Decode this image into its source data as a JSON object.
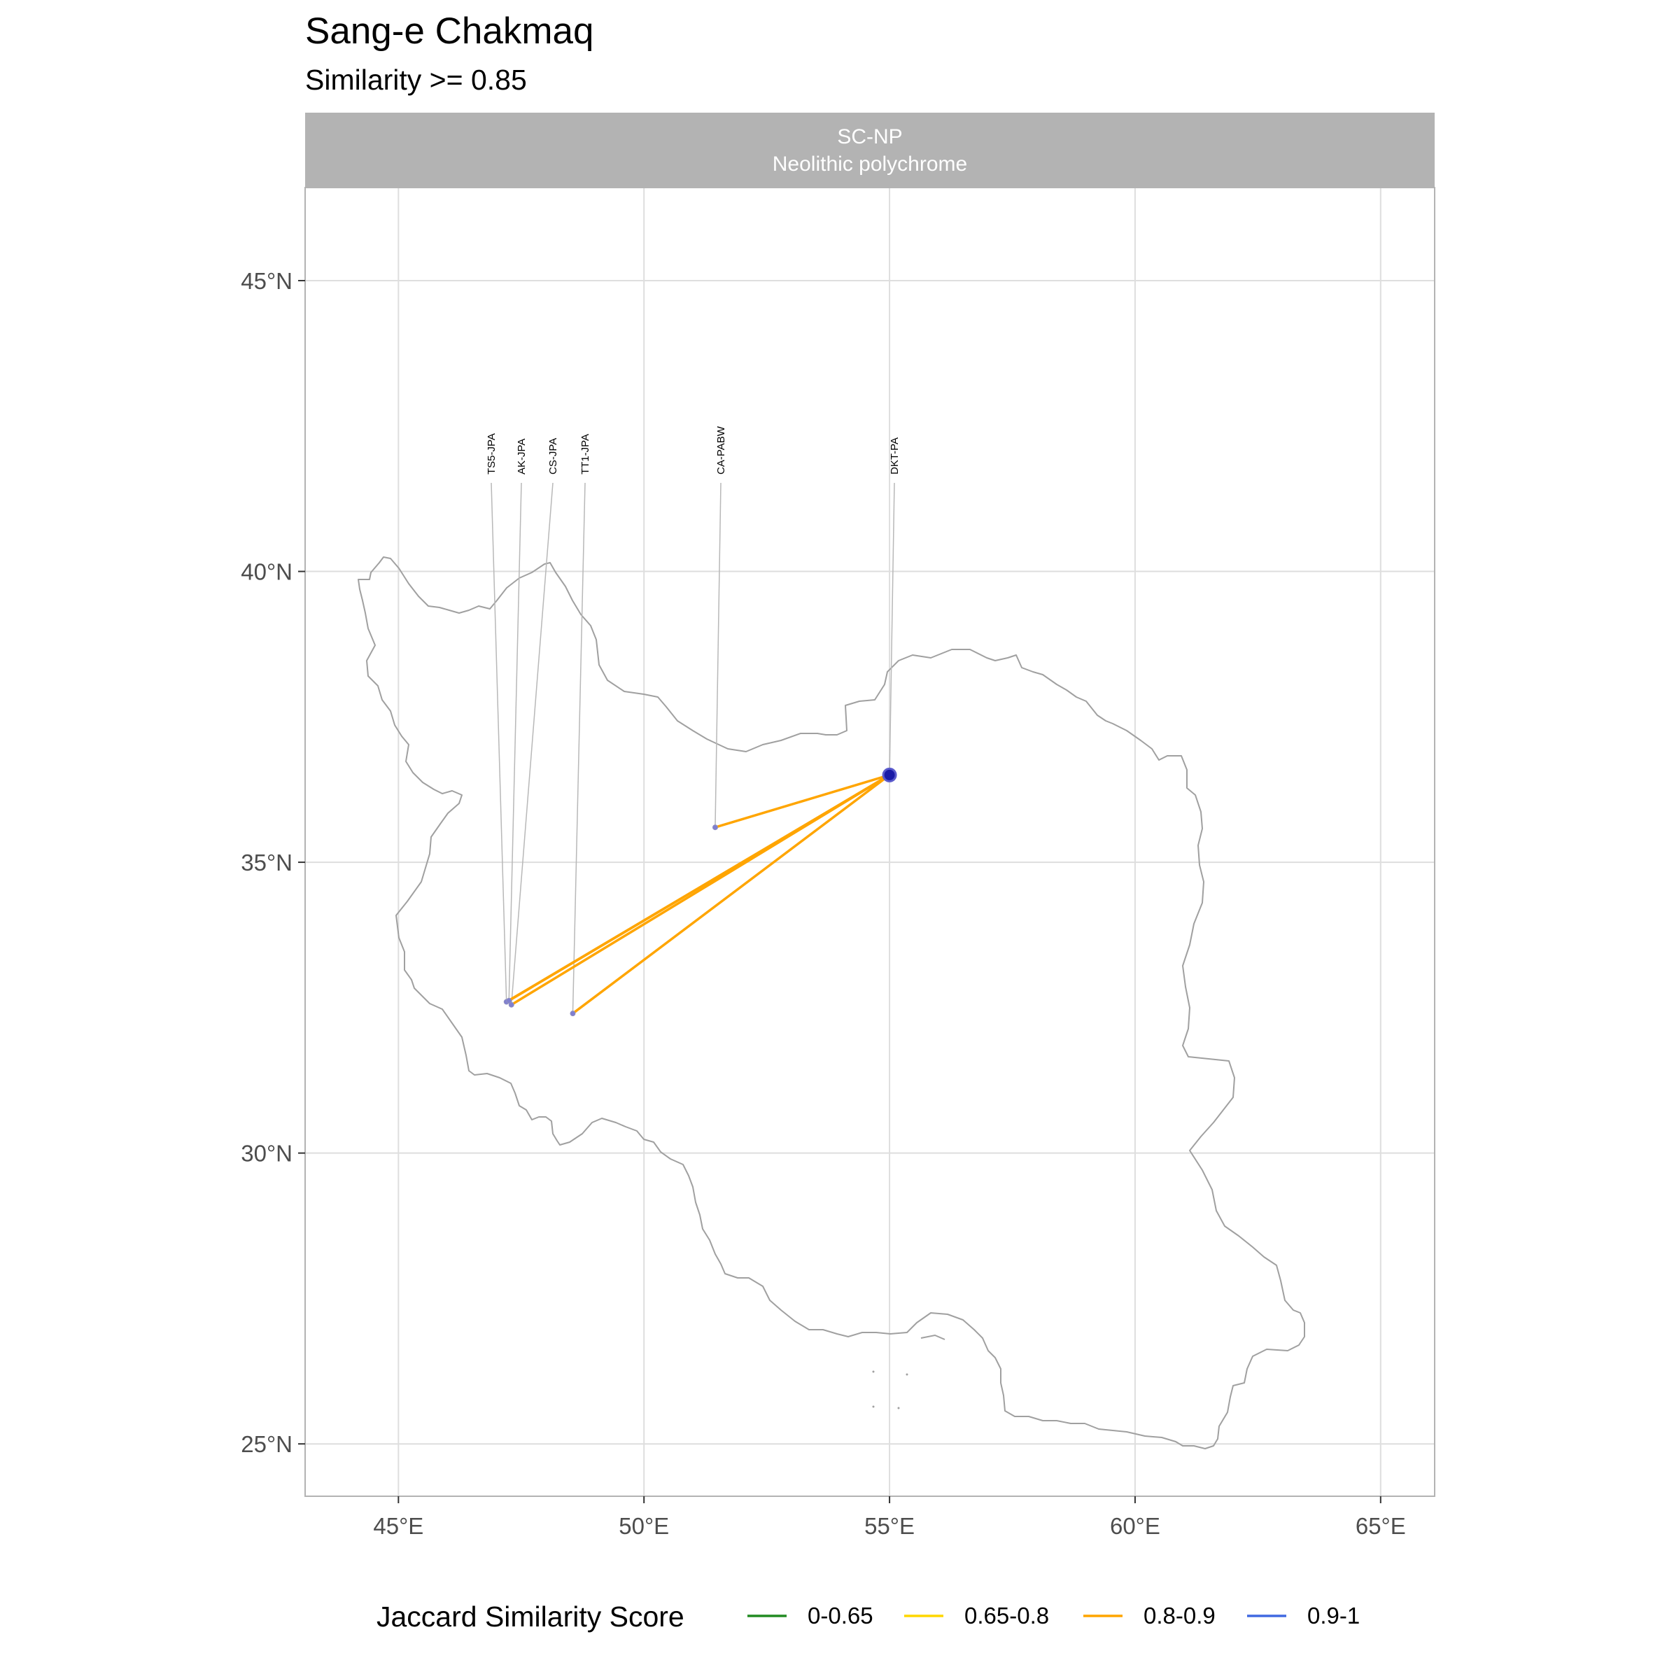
{
  "title": "Sang-e Chakmaq",
  "subtitle": "Similarity >= 0.85",
  "facet": {
    "code": "SC-NP",
    "name": "Neolithic polychrome"
  },
  "axes": {
    "x_ticks": [
      {
        "value": 45,
        "label": "45°E"
      },
      {
        "value": 50,
        "label": "50°E"
      },
      {
        "value": 55,
        "label": "55°E"
      },
      {
        "value": 60,
        "label": "60°E"
      },
      {
        "value": 65,
        "label": "65°E"
      }
    ],
    "y_ticks": [
      {
        "value": 25,
        "label": "25°N"
      },
      {
        "value": 30,
        "label": "30°N"
      },
      {
        "value": 35,
        "label": "35°N"
      },
      {
        "value": 40,
        "label": "40°N"
      },
      {
        "value": 45,
        "label": "45°N"
      }
    ],
    "xlim": [
      43.1,
      66.1
    ],
    "ylim": [
      24.1,
      46.6
    ]
  },
  "legend": {
    "title": "Jaccard Similarity Score",
    "position": "bottom",
    "items": [
      {
        "label": "0-0.65",
        "color": "#228B22"
      },
      {
        "label": "0.65-0.8",
        "color": "#FFD700"
      },
      {
        "label": "0.8-0.9",
        "color": "#FFA500"
      },
      {
        "label": "0.9-1",
        "color": "#4169E1"
      }
    ]
  },
  "chart_data": {
    "type": "map",
    "focal_site": {
      "label": "DKT-PA",
      "lon": 55.0,
      "lat": 36.5,
      "color": "#1a1aa6"
    },
    "sites": [
      {
        "label": "TS5-JPA",
        "lon": 47.2,
        "lat": 32.6
      },
      {
        "label": "CS-JPA",
        "lon": 47.3,
        "lat": 32.55
      },
      {
        "label": "AK-JPA",
        "lon": 47.25,
        "lat": 32.62
      },
      {
        "label": "TT1-JPA",
        "lon": 48.55,
        "lat": 32.4
      },
      {
        "label": "CA-PABW",
        "lon": 51.45,
        "lat": 35.6
      }
    ],
    "connections": [
      {
        "from": "DKT-PA",
        "to": "TS5-JPA",
        "category": "0.8-0.9"
      },
      {
        "from": "DKT-PA",
        "to": "CS-JPA",
        "category": "0.8-0.9"
      },
      {
        "from": "DKT-PA",
        "to": "AK-JPA",
        "category": "0.8-0.9"
      },
      {
        "from": "DKT-PA",
        "to": "TT1-JPA",
        "category": "0.8-0.9"
      },
      {
        "from": "DKT-PA",
        "to": "CA-PABW",
        "category": "0.8-0.9"
      }
    ],
    "border_color": "#a0a0a0",
    "grid": true
  }
}
